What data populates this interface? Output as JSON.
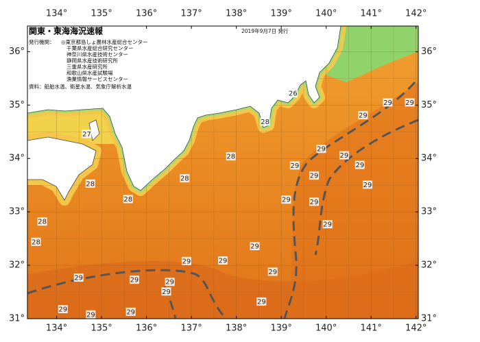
{
  "header": {
    "title": "関東・東海海況速報",
    "date": "2019年9月7日 発行"
  },
  "issuers": {
    "label": "発行機関：",
    "items": [
      "◎東京都島しょ農林水産総合センター",
      "千葉県水産総合研究センター",
      "神奈川県水産技術センター",
      "静岡県水産技術研究所",
      "三重県水産研究所",
      "和歌山県水産試験場",
      "漁業情報サービスセンター"
    ]
  },
  "source": "資料：船舶水温、衛星水温、気象庁解析水温",
  "map": {
    "xlim": [
      133.35,
      142.05
    ],
    "ylim": [
      31.0,
      36.48
    ],
    "xticks": [
      {
        "value": 134,
        "label": "134°"
      },
      {
        "value": 135,
        "label": "135°"
      },
      {
        "value": 136,
        "label": "136°"
      },
      {
        "value": 137,
        "label": "137°"
      },
      {
        "value": 138,
        "label": "138°"
      },
      {
        "value": 139,
        "label": "139°"
      },
      {
        "value": 140,
        "label": "140°"
      },
      {
        "value": 141,
        "label": "141°"
      },
      {
        "value": 142,
        "label": "142°"
      }
    ],
    "yticks": [
      {
        "value": 31,
        "label": "31°"
      },
      {
        "value": 32,
        "label": "32°"
      },
      {
        "value": 33,
        "label": "33°"
      },
      {
        "value": 34,
        "label": "34°"
      },
      {
        "value": 35,
        "label": "35°"
      },
      {
        "value": 36,
        "label": "36°"
      }
    ],
    "contour_labels": [
      {
        "value": 26,
        "lon": 139.26,
        "lat": 35.22
      },
      {
        "value": 27,
        "lon": 134.67,
        "lat": 34.46
      },
      {
        "value": 28,
        "lon": 138.64,
        "lat": 34.69
      },
      {
        "value": 28,
        "lon": 137.88,
        "lat": 34.04
      },
      {
        "value": 28,
        "lon": 136.85,
        "lat": 33.63
      },
      {
        "value": 28,
        "lon": 134.75,
        "lat": 33.53
      },
      {
        "value": 28,
        "lon": 135.59,
        "lat": 33.24
      },
      {
        "value": 28,
        "lon": 133.68,
        "lat": 32.82
      },
      {
        "value": 28,
        "lon": 133.54,
        "lat": 32.44
      },
      {
        "value": 29,
        "lon": 141.37,
        "lat": 35.05
      },
      {
        "value": 29,
        "lon": 141.86,
        "lat": 35.05
      },
      {
        "value": 29,
        "lon": 140.82,
        "lat": 34.81
      },
      {
        "value": 29,
        "lon": 139.89,
        "lat": 34.18
      },
      {
        "value": 29,
        "lon": 139.3,
        "lat": 33.87
      },
      {
        "value": 29,
        "lon": 139.73,
        "lat": 33.68
      },
      {
        "value": 29,
        "lon": 140.4,
        "lat": 34.06
      },
      {
        "value": 29,
        "lon": 140.75,
        "lat": 33.88
      },
      {
        "value": 29,
        "lon": 140.92,
        "lat": 33.51
      },
      {
        "value": 29,
        "lon": 139.11,
        "lat": 33.23
      },
      {
        "value": 29,
        "lon": 139.73,
        "lat": 33.19
      },
      {
        "value": 29,
        "lon": 140.03,
        "lat": 32.77
      },
      {
        "value": 29,
        "lon": 138.41,
        "lat": 32.36
      },
      {
        "value": 29,
        "lon": 136.89,
        "lat": 32.08
      },
      {
        "value": 29,
        "lon": 137.7,
        "lat": 32.09
      },
      {
        "value": 29,
        "lon": 138.81,
        "lat": 31.88
      },
      {
        "value": 29,
        "lon": 134.49,
        "lat": 31.77
      },
      {
        "value": 29,
        "lon": 135.73,
        "lat": 31.73
      },
      {
        "value": 29,
        "lon": 136.52,
        "lat": 31.69
      },
      {
        "value": 29,
        "lon": 136.44,
        "lat": 31.51
      },
      {
        "value": 29,
        "lon": 138.56,
        "lat": 31.32
      },
      {
        "value": 29,
        "lon": 134.14,
        "lat": 31.18
      },
      {
        "value": 29,
        "lon": 135.65,
        "lat": 31.13
      },
      {
        "value": 29,
        "lon": 134.76,
        "lat": 31.08
      }
    ]
  }
}
